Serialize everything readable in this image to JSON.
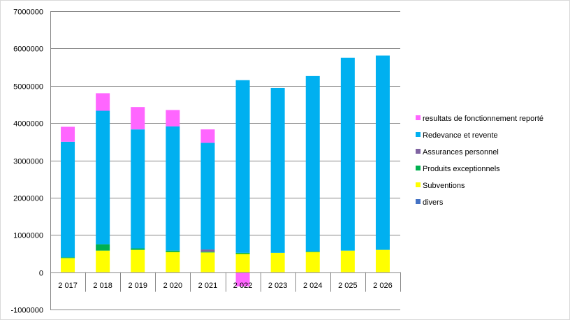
{
  "chart_data": {
    "type": "bar",
    "stacked": true,
    "title": "",
    "xlabel": "",
    "ylabel": "",
    "ylim": [
      -1000000,
      7000000
    ],
    "yticks": [
      -1000000,
      0,
      1000000,
      2000000,
      3000000,
      4000000,
      5000000,
      6000000,
      7000000
    ],
    "grid": true,
    "legend_position": "right",
    "categories": [
      "2 017",
      "2 018",
      "2 019",
      "2 020",
      "2 021",
      "2 022",
      "2 023",
      "2 024",
      "2 025",
      "2 026"
    ],
    "series": [
      {
        "name": "divers",
        "color": "#4472C4",
        "values": [
          0,
          0,
          0,
          0,
          0,
          0,
          0,
          0,
          0,
          0
        ]
      },
      {
        "name": "Subventions",
        "color": "#FFFF00",
        "values": [
          380000,
          580000,
          600000,
          540000,
          530000,
          490000,
          520000,
          540000,
          580000,
          600000
        ]
      },
      {
        "name": "Produits exceptionnels",
        "color": "#00B050",
        "values": [
          20000,
          170000,
          40000,
          40000,
          20000,
          30000,
          0,
          20000,
          0,
          0
        ]
      },
      {
        "name": "Assurances personnel",
        "color": "#8064A2",
        "values": [
          0,
          0,
          0,
          0,
          60000,
          0,
          0,
          0,
          0,
          0
        ]
      },
      {
        "name": "Redevance et revente",
        "color": "#00B0F0",
        "values": [
          3100000,
          3580000,
          3190000,
          3330000,
          2860000,
          4630000,
          4420000,
          4700000,
          5170000,
          5210000
        ]
      },
      {
        "name": "resultats de fonctionnement reporté",
        "color": "#FF66FF",
        "values": [
          400000,
          470000,
          600000,
          440000,
          360000,
          -380000,
          0,
          0,
          0,
          0
        ]
      }
    ]
  }
}
